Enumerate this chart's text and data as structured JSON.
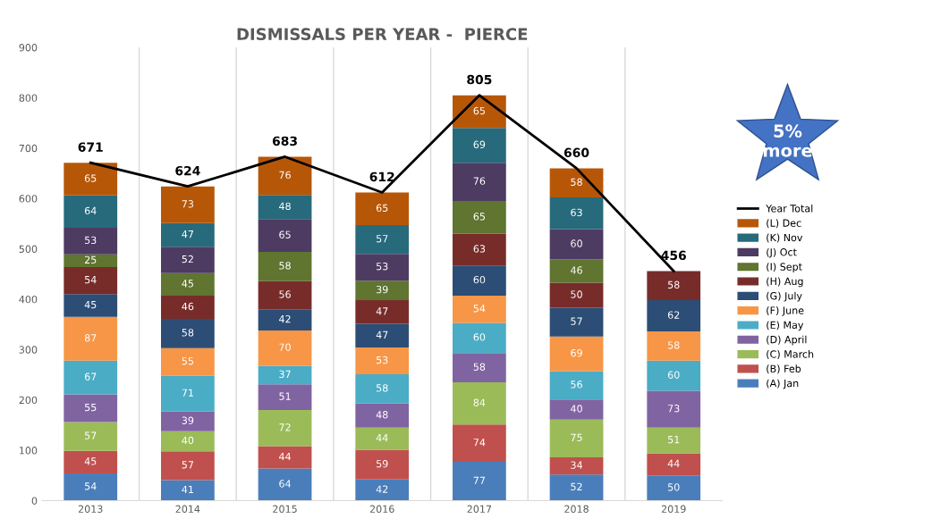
{
  "chart_data": {
    "type": "bar",
    "stacked": true,
    "title": "DISMISSALS PER YEAR -  PIERCE",
    "categories": [
      "2013",
      "2014",
      "2015",
      "2016",
      "2017",
      "2018",
      "2019"
    ],
    "series": [
      {
        "name": "(A) Jan",
        "color": "#4a7ebb",
        "values": [
          54,
          41,
          64,
          42,
          77,
          52,
          50
        ]
      },
      {
        "name": "(B) Feb",
        "color": "#c0504d",
        "values": [
          45,
          57,
          44,
          59,
          74,
          34,
          44
        ]
      },
      {
        "name": "(C) March",
        "color": "#9bbb59",
        "values": [
          57,
          40,
          72,
          44,
          84,
          75,
          51
        ]
      },
      {
        "name": "(D) April",
        "color": "#8064a2",
        "values": [
          55,
          39,
          51,
          48,
          58,
          40,
          73
        ]
      },
      {
        "name": "(E) May",
        "color": "#4bacc6",
        "values": [
          67,
          71,
          37,
          58,
          60,
          56,
          60
        ]
      },
      {
        "name": "(F) June",
        "color": "#f79646",
        "values": [
          87,
          55,
          70,
          53,
          54,
          69,
          58
        ]
      },
      {
        "name": "(G) July",
        "color": "#2c4d75",
        "values": [
          45,
          58,
          42,
          47,
          60,
          57,
          62
        ]
      },
      {
        "name": "(H) Aug",
        "color": "#772c2a",
        "values": [
          54,
          46,
          56,
          47,
          63,
          50,
          58
        ]
      },
      {
        "name": "(I) Sept",
        "color": "#5f7530",
        "values": [
          25,
          45,
          58,
          39,
          65,
          46,
          null
        ]
      },
      {
        "name": "(J) Oct",
        "color": "#4d3b62",
        "values": [
          53,
          52,
          65,
          53,
          76,
          60,
          null
        ]
      },
      {
        "name": "(K) Nov",
        "color": "#276a7c",
        "values": [
          64,
          47,
          48,
          57,
          69,
          63,
          null
        ]
      },
      {
        "name": "(L) Dec",
        "color": "#b65708",
        "values": [
          65,
          73,
          76,
          65,
          65,
          58,
          null
        ]
      },
      {
        "name": "Year Total",
        "type": "line",
        "color": "#000000",
        "values": [
          671,
          624,
          683,
          612,
          805,
          660,
          456
        ],
        "value_labels": [
          "671",
          "624",
          "683",
          "612",
          "805",
          "660",
          "456"
        ]
      }
    ],
    "data_labels": true,
    "ylim": [
      0,
      900
    ],
    "yticks": [
      0,
      100,
      200,
      300,
      400,
      500,
      600,
      700,
      800,
      900
    ],
    "grid": "x",
    "legend": "right",
    "marker": "none",
    "annotations": [
      "5%\nmore"
    ]
  }
}
